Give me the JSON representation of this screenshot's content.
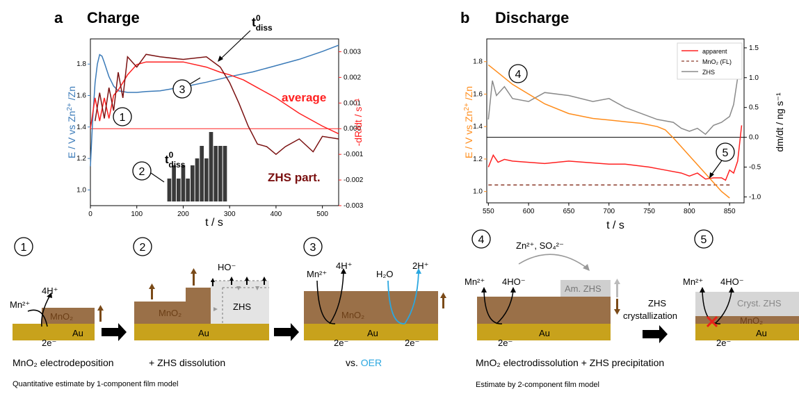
{
  "panel_a": {
    "letter": "a",
    "title": "Charge",
    "x_label": "t / s",
    "x_ticks": [
      "0",
      "100",
      "200",
      "300",
      "400",
      "500"
    ],
    "y_left_ticks": [
      "1.0",
      "1.2",
      "1.4",
      "1.6",
      "1.8"
    ],
    "y_right_ticks": [
      "0.003",
      "0.002",
      "0.001",
      "0.000",
      "-0.001",
      "-0.002",
      "-0.003"
    ],
    "y_right_label": "-dR/dt / s⁻¹",
    "annotations": {
      "tdiss_main": "t⁰diss",
      "tdiss_hist": "t⁰diss",
      "average": "average",
      "zhs_part": "ZHS part."
    }
  },
  "panel_b": {
    "letter": "b",
    "title": "Discharge",
    "x_label": "t / s",
    "x_ticks": [
      "550",
      "600",
      "650",
      "700",
      "750",
      "800",
      "850"
    ],
    "y_left_ticks": [
      "1.0",
      "1.2",
      "1.4",
      "1.6",
      "1.8"
    ],
    "y_right_ticks": [
      "1.5",
      "1.0",
      "0.5",
      "0.0",
      "-0.5",
      "-1.0"
    ],
    "y_right_label": "dm/dt / ng s⁻¹",
    "legend": [
      "apparent",
      "MnO₂ (FL)",
      "ZHS"
    ]
  },
  "schematic": {
    "step1": {
      "num": "1",
      "mn": "Mn²⁺",
      "h": "4H⁺",
      "film": "MnO₂",
      "e": "2e⁻",
      "sub": "Au",
      "caption": "MnO₂ electrodeposition"
    },
    "step2": {
      "num": "2",
      "ho": "HO⁻",
      "film": "MnO₂",
      "zhs": "ZHS",
      "sub": "Au",
      "caption": "+ ZHS dissolution"
    },
    "step3": {
      "num": "3",
      "mn": "Mn²⁺",
      "h": "4H⁺",
      "h2o": "H₂O",
      "h2": "2H⁺",
      "film": "MnO₂",
      "e1": "2e⁻",
      "e2": "2e⁻",
      "sub": "Au",
      "caption_prefix": "vs. ",
      "caption_oer": "OER"
    },
    "step4": {
      "num": "4",
      "zn": "Zn²⁺, SO₄²⁻",
      "mn": "Mn²⁺",
      "ho": "4HO⁻",
      "am": "Am. ZHS",
      "e": "2e⁻",
      "sub": "Au"
    },
    "crystallization": "ZHS crystallization",
    "step5": {
      "num": "5",
      "mn": "Mn²⁺",
      "ho": "4HO⁻",
      "cryst": "Cryst. ZHS",
      "film": "MnO₂",
      "e": "2e⁻",
      "sub": "Au"
    },
    "caption_left_big": "MnO₂ electrodeposition",
    "caption_left_small": "Quantitative estimate by 1-component film model",
    "caption_right_big": "MnO₂ electrodissolution + ZHS precipitation",
    "caption_right_small": "Estimate by 2-component film model"
  },
  "chart_data": [
    {
      "type": "line",
      "title": "Charge",
      "xlabel": "t / s",
      "ylabel_left": "E / V vs Zn²⁺/Zn",
      "ylabel_right": "-dR/dt / s⁻¹",
      "xlim": [
        0,
        535
      ],
      "ylim_left": [
        0.9,
        1.96
      ],
      "ylim_right": [
        -0.003,
        0.0035
      ],
      "series": [
        {
          "axis": "left",
          "color": "#3a7ab8",
          "x": [
            0,
            5,
            10,
            15,
            20,
            25,
            30,
            40,
            50,
            60,
            70,
            80,
            100,
            120,
            150,
            200,
            250,
            300,
            350,
            400,
            450,
            500,
            535
          ],
          "y": [
            1.15,
            1.45,
            1.68,
            1.8,
            1.86,
            1.85,
            1.81,
            1.72,
            1.66,
            1.63,
            1.625,
            1.62,
            1.62,
            1.625,
            1.63,
            1.655,
            1.685,
            1.72,
            1.75,
            1.79,
            1.83,
            1.88,
            1.92
          ]
        },
        {
          "axis": "right",
          "color": "#ff2020",
          "x": [
            0,
            10,
            20,
            30,
            40,
            50,
            60,
            70,
            80,
            100,
            120,
            150,
            200,
            250,
            280,
            300,
            330,
            360,
            400,
            450,
            500,
            535
          ],
          "y": [
            0.0,
            0.0012,
            0.0003,
            0.0012,
            0.0004,
            0.0013,
            0.0015,
            0.0018,
            0.0021,
            0.0025,
            0.0026,
            0.0026,
            0.0026,
            0.0024,
            0.0022,
            0.0021,
            0.0019,
            0.0016,
            0.0012,
            0.0006,
            0.0001,
            -0.0002
          ]
        },
        {
          "axis": "right",
          "color": "#7a1010",
          "x": [
            10,
            20,
            30,
            40,
            50,
            60,
            70,
            80,
            100,
            120,
            150,
            200,
            250,
            280,
            300,
            320,
            340,
            360,
            380,
            400,
            420,
            450,
            480,
            500,
            535
          ],
          "y": [
            0.0003,
            0.0014,
            0.0004,
            0.0016,
            0.0007,
            0.0022,
            0.0012,
            0.0028,
            0.0024,
            0.0029,
            0.0028,
            0.0027,
            0.0028,
            0.0024,
            0.0018,
            0.001,
            0.0001,
            -0.0006,
            -0.0007,
            -0.001,
            -0.0007,
            -0.0004,
            -0.0009,
            -0.0003,
            -0.0004
          ]
        }
      ],
      "hline_right": 0.0,
      "histogram": {
        "x": [
          170,
          180,
          190,
          200,
          210,
          220,
          230,
          240,
          250,
          260,
          270,
          280,
          290
        ],
        "height": [
          0.33,
          0.52,
          0.33,
          0.52,
          0.33,
          0.52,
          0.62,
          0.8,
          0.62,
          1.0,
          0.8,
          0.8,
          0.8
        ]
      }
    },
    {
      "type": "line",
      "title": "Discharge",
      "xlabel": "t / s",
      "ylabel_left": "E / V vs Zn²⁺/Zn",
      "ylabel_right": "dm/dt / ng s⁻¹",
      "xlim": [
        548,
        868
      ],
      "ylim_left": [
        0.93,
        1.94
      ],
      "ylim_right": [
        -1.1,
        1.65
      ],
      "legend_position": "top-right",
      "series": [
        {
          "name": "apparent",
          "axis": "right",
          "color": "#ff2020",
          "x": [
            550,
            556,
            562,
            570,
            580,
            600,
            620,
            650,
            680,
            700,
            720,
            750,
            770,
            790,
            800,
            810,
            820,
            830,
            840,
            845,
            850,
            855,
            860,
            865
          ],
          "y": [
            -0.5,
            -0.3,
            -0.42,
            -0.37,
            -0.4,
            -0.42,
            -0.44,
            -0.4,
            -0.43,
            -0.45,
            -0.45,
            -0.5,
            -0.55,
            -0.6,
            -0.65,
            -0.6,
            -0.7,
            -0.68,
            -0.68,
            -0.72,
            -0.55,
            -0.6,
            -0.4,
            0.2
          ]
        },
        {
          "name": "MnO₂ (FL)",
          "axis": "right",
          "color": "#8b3a2a",
          "dashed": true,
          "x": [
            550,
            850
          ],
          "y": [
            -0.8,
            -0.8
          ]
        },
        {
          "name": "ZHS",
          "axis": "right",
          "color": "#8a8a8a",
          "x": [
            550,
            555,
            560,
            570,
            580,
            600,
            620,
            650,
            680,
            700,
            720,
            740,
            760,
            780,
            790,
            800,
            810,
            820,
            830,
            840,
            850,
            855,
            860
          ],
          "y": [
            0.3,
            0.95,
            0.7,
            0.85,
            0.65,
            0.6,
            0.75,
            0.7,
            0.6,
            0.65,
            0.5,
            0.4,
            0.3,
            0.25,
            0.15,
            0.1,
            0.15,
            0.05,
            0.2,
            0.25,
            0.35,
            0.55,
            1.0
          ]
        },
        {
          "axis": "left",
          "color": "#ff8c1a",
          "x": [
            550,
            560,
            580,
            600,
            620,
            650,
            680,
            700,
            720,
            740,
            760,
            770,
            780,
            800,
            820,
            840,
            850
          ],
          "y": [
            1.78,
            1.74,
            1.66,
            1.6,
            1.54,
            1.48,
            1.45,
            1.44,
            1.43,
            1.42,
            1.4,
            1.38,
            1.33,
            1.22,
            1.11,
            1.0,
            0.96
          ]
        }
      ],
      "hline_right": 0.0
    }
  ]
}
